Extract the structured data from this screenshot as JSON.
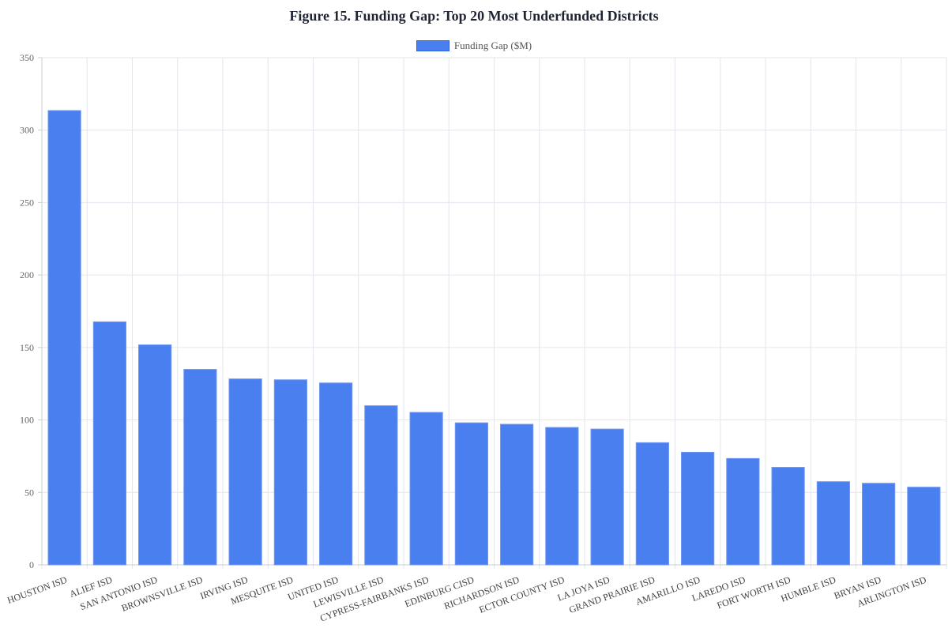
{
  "chart_data": {
    "type": "bar",
    "title": "Figure 15. Funding Gap: Top 20 Most Underfunded Districts",
    "xlabel": "",
    "ylabel": "",
    "ylim": [
      0,
      350
    ],
    "yticks": [
      0,
      50,
      100,
      150,
      200,
      250,
      300,
      350
    ],
    "grid": true,
    "legend_position": "top-center",
    "categories": [
      "HOUSTON ISD",
      "ALIEF ISD",
      "SAN ANTONIO ISD",
      "BROWNSVILLE ISD",
      "IRVING ISD",
      "MESQUITE ISD",
      "UNITED ISD",
      "LEWISVILLE ISD",
      "CYPRESS-FAIRBANKS ISD",
      "EDINBURG CISD",
      "RICHARDSON ISD",
      "ECTOR COUNTY ISD",
      "LA JOYA ISD",
      "GRAND PRAIRIE ISD",
      "AMARILLO ISD",
      "LAREDO ISD",
      "FORT WORTH ISD",
      "HUMBLE ISD",
      "BRYAN ISD",
      "ARLINGTON ISD"
    ],
    "series": [
      {
        "name": "Funding Gap ($M)",
        "color": "#4a7ff0",
        "values": [
          313.5,
          167.7,
          151.8,
          134.9,
          128.3,
          127.7,
          125.5,
          109.8,
          105.2,
          98.0,
          97.0,
          94.8,
          93.7,
          84.3,
          77.7,
          73.4,
          67.3,
          57.4,
          56.3,
          53.6
        ]
      }
    ]
  }
}
